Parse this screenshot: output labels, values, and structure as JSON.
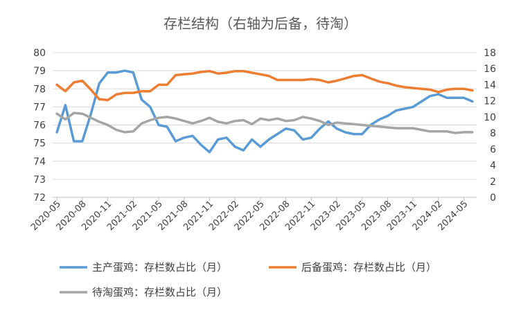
{
  "chart_data": {
    "type": "line",
    "title": "存栏结构（右轴为后备，待淘）",
    "x": [
      "2020-05",
      "2020-06",
      "2020-07",
      "2020-08",
      "2020-09",
      "2020-10",
      "2020-11",
      "2020-12",
      "2021-01",
      "2021-02",
      "2021-03",
      "2021-04",
      "2021-05",
      "2021-06",
      "2021-07",
      "2021-08",
      "2021-09",
      "2021-10",
      "2021-11",
      "2021-12",
      "2022-01",
      "2022-02",
      "2022-03",
      "2022-04",
      "2022-05",
      "2022-06",
      "2022-07",
      "2022-08",
      "2022-09",
      "2022-10",
      "2022-11",
      "2022-12",
      "2023-01",
      "2023-02",
      "2023-03",
      "2023-04",
      "2023-05",
      "2023-06",
      "2023-07",
      "2023-08",
      "2023-09",
      "2023-10",
      "2023-11",
      "2023-12",
      "2024-01",
      "2024-02",
      "2024-03",
      "2024-04",
      "2024-05",
      "2024-06"
    ],
    "x_tick_labels": [
      "2020-05",
      "2020-08",
      "2020-11",
      "2021-02",
      "2021-05",
      "2021-08",
      "2021-11",
      "2022-02",
      "2022-05",
      "2022-08",
      "2022-11",
      "2023-02",
      "2023-05",
      "2023-08",
      "2023-11",
      "2024-02",
      "2024-05"
    ],
    "y_left": {
      "min": 72,
      "max": 80,
      "step": 1,
      "ticks": [
        "72",
        "73",
        "74",
        "75",
        "76",
        "77",
        "78",
        "79",
        "80"
      ]
    },
    "y_right": {
      "min": 0,
      "max": 18,
      "step": 2,
      "ticks": [
        "0",
        "2",
        "4",
        "6",
        "8",
        "10",
        "12",
        "14",
        "16",
        "18"
      ]
    },
    "series": [
      {
        "name": "主产蛋鸡：存栏数占比（月）",
        "axis": "left",
        "color": "#5B9BD5",
        "values": [
          75.6,
          77.1,
          75.1,
          75.1,
          76.6,
          78.3,
          78.9,
          78.9,
          79.0,
          78.9,
          77.4,
          77.0,
          76.0,
          75.9,
          75.1,
          75.3,
          75.4,
          74.9,
          74.5,
          75.2,
          75.3,
          74.8,
          74.6,
          75.2,
          74.8,
          75.2,
          75.5,
          75.8,
          75.7,
          75.2,
          75.3,
          75.8,
          76.2,
          75.8,
          75.6,
          75.5,
          75.5,
          76.0,
          76.3,
          76.5,
          76.8,
          76.9,
          77.0,
          77.3,
          77.6,
          77.7,
          77.5,
          77.5,
          77.5,
          77.3
        ]
      },
      {
        "name": "后备蛋鸡：存栏数占比（月）",
        "axis": "right",
        "color": "#ED7D31",
        "values": [
          14.0,
          13.2,
          14.3,
          14.5,
          13.4,
          12.2,
          12.1,
          12.8,
          13.0,
          13.0,
          13.2,
          13.2,
          14.0,
          14.0,
          15.2,
          15.3,
          15.4,
          15.6,
          15.7,
          15.4,
          15.5,
          15.7,
          15.7,
          15.5,
          15.3,
          15.1,
          14.6,
          14.6,
          14.6,
          14.6,
          14.7,
          14.6,
          14.3,
          14.5,
          14.8,
          15.1,
          15.2,
          14.8,
          14.4,
          14.2,
          13.9,
          13.7,
          13.6,
          13.5,
          13.4,
          13.1,
          13.4,
          13.5,
          13.5,
          13.3
        ]
      },
      {
        "name": "待淘蛋鸡：存栏数占比（月）",
        "axis": "right",
        "color": "#A5A5A5",
        "values": [
          10.4,
          9.7,
          10.5,
          10.4,
          9.9,
          9.4,
          9.0,
          8.4,
          8.1,
          8.2,
          9.2,
          9.6,
          9.9,
          10.0,
          9.8,
          9.5,
          9.2,
          9.5,
          9.9,
          9.4,
          9.2,
          9.5,
          9.6,
          9.1,
          9.8,
          9.6,
          9.8,
          9.5,
          9.6,
          10.0,
          9.8,
          9.5,
          9.0,
          9.3,
          9.2,
          9.1,
          9.0,
          8.9,
          8.8,
          8.7,
          8.6,
          8.6,
          8.6,
          8.4,
          8.2,
          8.2,
          8.2,
          8.0,
          8.1,
          8.1
        ]
      }
    ],
    "legend_position": "bottom",
    "grid": true
  }
}
